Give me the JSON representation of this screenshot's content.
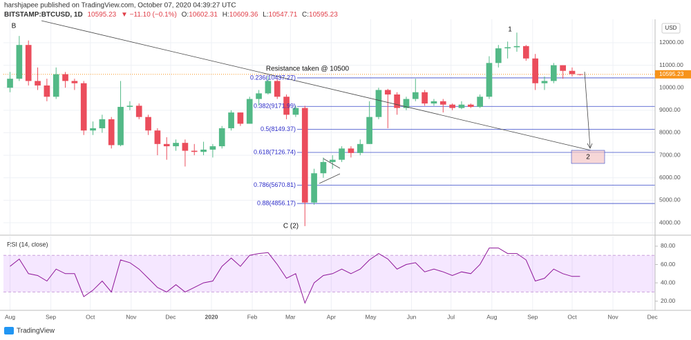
{
  "header": {
    "author_line": "harshjapee published on TradingView.com, October 07, 2020 04:39:27 UTC",
    "symbol": "BITSTAMP:BTCUSD, 1D",
    "change": "▼ −11.10 (−0.1%)",
    "o_label": "O:",
    "h_label": "H:",
    "l_label": "L:",
    "c_label": "C:",
    "footer": "TradingView"
  },
  "chart_data": [
    {
      "type": "candlestick",
      "currency": "USD",
      "up_color": "#53b987",
      "down_color": "#eb4d5c",
      "last_color": "#f7931a",
      "grid": true,
      "x": [
        0,
        7,
        14,
        21,
        28,
        35,
        42,
        49,
        56,
        63,
        70,
        77,
        84,
        91,
        98,
        105,
        112,
        119,
        126,
        133,
        140,
        147,
        154,
        161,
        168,
        175,
        182,
        189,
        196,
        203,
        210,
        217,
        224,
        231,
        238,
        245,
        252,
        259,
        266,
        273,
        280,
        287,
        294,
        301,
        308,
        315,
        322,
        329,
        336,
        343,
        350,
        357,
        364,
        371,
        378,
        385,
        392,
        399,
        406,
        413,
        420,
        427,
        433
      ],
      "open": [
        10000,
        10400,
        11900,
        10300,
        10100,
        9600,
        10600,
        10300,
        10200,
        8100,
        8200,
        8600,
        7450,
        9150,
        9200,
        8700,
        8100,
        7500,
        7400,
        7550,
        7200,
        7150,
        7250,
        7400,
        8200,
        8900,
        8400,
        9500,
        9750,
        10300,
        9600,
        8800,
        9100,
        4900,
        6200,
        6700,
        6800,
        7300,
        7100,
        7500,
        8700,
        9900,
        9700,
        9100,
        9500,
        9800,
        9300,
        9400,
        9250,
        9100,
        9250,
        9150,
        9600,
        11100,
        11750,
        11800,
        11850,
        11300,
        10200,
        10300,
        11000,
        10750,
        10602.31
      ],
      "high": [
        10700,
        12300,
        12100,
        10900,
        10400,
        10900,
        10700,
        10400,
        10300,
        8500,
        8800,
        8700,
        10300,
        9400,
        9300,
        8800,
        8200,
        7800,
        7700,
        7700,
        7500,
        7600,
        7500,
        8300,
        9000,
        8900,
        9600,
        9900,
        10500,
        10400,
        9700,
        9200,
        9200,
        6400,
        6900,
        7000,
        7400,
        7400,
        7700,
        9400,
        10000,
        9950,
        9800,
        9600,
        10400,
        9900,
        9500,
        9500,
        9300,
        9400,
        9300,
        9700,
        11400,
        11900,
        12050,
        12450,
        11900,
        11500,
        10500,
        11100,
        11000,
        10900,
        10609.36
      ],
      "low": [
        9800,
        10300,
        10100,
        9900,
        9400,
        9500,
        10000,
        9900,
        7900,
        7900,
        8000,
        7300,
        7400,
        9000,
        8600,
        7900,
        7000,
        6800,
        7200,
        6500,
        7000,
        7000,
        6900,
        7300,
        8100,
        8300,
        8400,
        9200,
        9700,
        9500,
        8600,
        8700,
        3850,
        4800,
        6000,
        6400,
        6700,
        6900,
        7000,
        7500,
        8600,
        8200,
        8800,
        9000,
        9400,
        9200,
        9200,
        8900,
        9000,
        9050,
        9100,
        9100,
        9500,
        10900,
        11300,
        11600,
        11200,
        9900,
        9900,
        10200,
        10400,
        10500,
        10547.71
      ],
      "close": [
        10400,
        11900,
        10300,
        10100,
        9600,
        10600,
        10300,
        10200,
        8100,
        8200,
        8600,
        7450,
        9150,
        9200,
        8700,
        8100,
        7500,
        7400,
        7550,
        7200,
        7150,
        7250,
        7400,
        8200,
        8900,
        8400,
        9500,
        9750,
        10300,
        9600,
        8800,
        9100,
        4900,
        6200,
        6700,
        6800,
        7300,
        7100,
        7500,
        8700,
        9900,
        9700,
        9100,
        9500,
        9800,
        9300,
        9400,
        9250,
        9100,
        9250,
        9150,
        9600,
        11100,
        11750,
        11800,
        11850,
        11300,
        10200,
        10300,
        11000,
        10750,
        10606.33,
        10595.23
      ],
      "xlim": [
        -5,
        490
      ],
      "xticks": [
        {
          "value": 0,
          "label": "Aug"
        },
        {
          "value": 31,
          "label": "Sep"
        },
        {
          "value": 61,
          "label": "Oct"
        },
        {
          "value": 92,
          "label": "Nov"
        },
        {
          "value": 122,
          "label": "Dec"
        },
        {
          "value": 153,
          "label": "2020"
        },
        {
          "value": 184,
          "label": "Feb"
        },
        {
          "value": 213,
          "label": "Mar"
        },
        {
          "value": 244,
          "label": "Apr"
        },
        {
          "value": 274,
          "label": "May"
        },
        {
          "value": 305,
          "label": "Jun"
        },
        {
          "value": 335,
          "label": "Jul"
        },
        {
          "value": 366,
          "label": "Aug"
        },
        {
          "value": 397,
          "label": "Sep"
        },
        {
          "value": 427,
          "label": "Oct"
        },
        {
          "value": 458,
          "label": "Nov"
        },
        {
          "value": 488,
          "label": "Dec"
        }
      ],
      "ylim": [
        3480,
        13040
      ],
      "yticks": [
        {
          "value": 4000,
          "label": "4000.00"
        },
        {
          "value": 5000,
          "label": "5000.00"
        },
        {
          "value": 6000,
          "label": "6000.00"
        },
        {
          "value": 7000,
          "label": "7000.00"
        },
        {
          "value": 8000,
          "label": "8000.00"
        },
        {
          "value": 9000,
          "label": "9000.00"
        },
        {
          "value": 10000,
          "label": "10000.00"
        },
        {
          "value": 11000,
          "label": "11000.00"
        },
        {
          "value": 12000,
          "label": "12000.00"
        }
      ],
      "fib_levels": [
        {
          "value": 10437.27,
          "label": "0.236(10437.27)"
        },
        {
          "value": 9171.99,
          "label": "0.382(9171.99)"
        },
        {
          "value": 8149.37,
          "label": "0.5(8149.37)"
        },
        {
          "value": 7126.74,
          "label": "0.618(7126.74)"
        },
        {
          "value": 5670.81,
          "label": "0.786(5670.81)"
        },
        {
          "value": 4856.17,
          "label": "0.88(4856.17)"
        }
      ],
      "fib_color": "#3546c8",
      "annotations": [
        "B",
        "1",
        "C (2)",
        "2",
        "Resistance taken @ 10500"
      ]
    },
    {
      "type": "line",
      "title": "RSI (14, close)",
      "color": "#8e1599",
      "x": [
        0,
        7,
        14,
        21,
        28,
        35,
        42,
        49,
        56,
        63,
        70,
        77,
        84,
        91,
        98,
        105,
        112,
        119,
        126,
        133,
        140,
        147,
        154,
        161,
        168,
        175,
        182,
        189,
        196,
        203,
        210,
        217,
        224,
        231,
        238,
        245,
        252,
        259,
        266,
        273,
        280,
        287,
        294,
        301,
        308,
        315,
        322,
        329,
        336,
        343,
        350,
        357,
        364,
        371,
        378,
        385,
        392,
        399,
        406,
        413,
        420,
        427,
        433
      ],
      "values": [
        58,
        66,
        50,
        48,
        42,
        55,
        50,
        50,
        25,
        32,
        42,
        30,
        65,
        62,
        55,
        45,
        35,
        30,
        38,
        30,
        35,
        40,
        42,
        58,
        67,
        58,
        70,
        72,
        73,
        60,
        45,
        50,
        18,
        40,
        48,
        50,
        55,
        50,
        55,
        65,
        72,
        66,
        55,
        60,
        62,
        52,
        55,
        52,
        48,
        52,
        50,
        60,
        78,
        78,
        72,
        72,
        65,
        42,
        45,
        55,
        50,
        47,
        47
      ],
      "band": [
        30,
        70
      ],
      "xlim": [
        -5,
        490
      ],
      "ylim": [
        10,
        90.5
      ],
      "yticks": [
        {
          "value": 20,
          "label": "20.00"
        },
        {
          "value": 40,
          "label": "40.00"
        },
        {
          "value": 60,
          "label": "60.00"
        },
        {
          "value": 80,
          "label": "80.00"
        }
      ]
    }
  ]
}
